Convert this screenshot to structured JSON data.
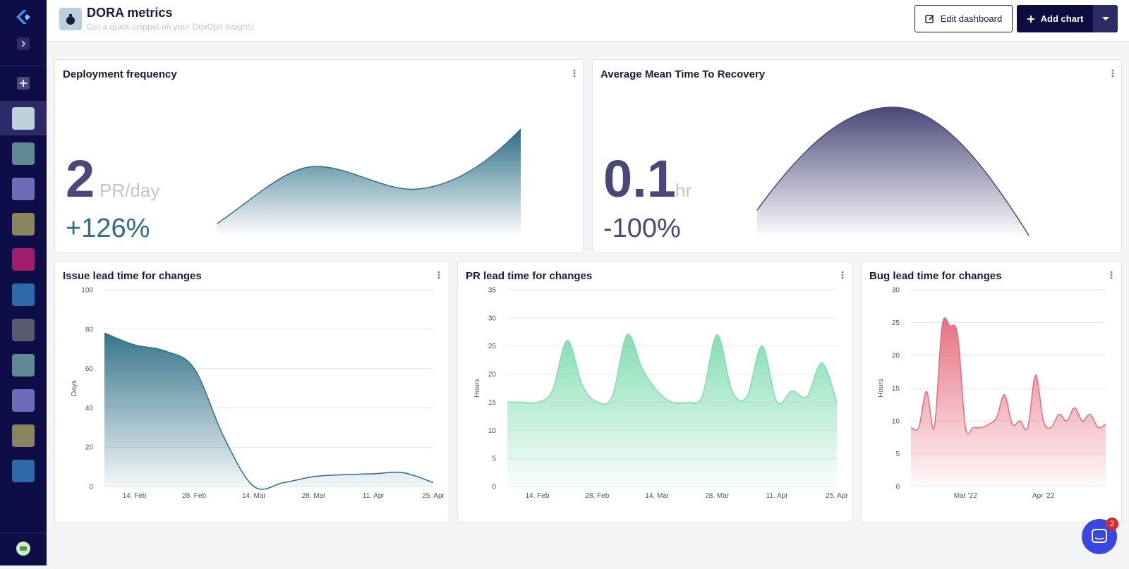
{
  "header": {
    "title": "DORA metrics",
    "subtitle": "Get a quick snippet on your DevOps insights",
    "edit_button": "Edit dashboard",
    "add_button": "Add chart"
  },
  "stat_cards": [
    {
      "title": "Deployment frequency",
      "value": 2,
      "unit": "PR/day",
      "change": "+126%"
    },
    {
      "title": "Average Mean Time To Recovery",
      "value": 0.1,
      "unit": "hr",
      "change": "-100%"
    }
  ],
  "chart_data": [
    {
      "type": "area",
      "title": "Issue lead time for changes",
      "y_label": "Days",
      "color": "#2c6e85",
      "categories": [
        null,
        "14. Feb",
        null,
        "28. Feb",
        null,
        "14. Mar",
        null,
        "28. Mar",
        null,
        "11. Apr",
        null,
        "25. Apr"
      ],
      "values": [
        78,
        72,
        69,
        60,
        25,
        0,
        2,
        5,
        6,
        6.5,
        7,
        2
      ],
      "ylim": [
        0,
        100
      ],
      "yticks": [
        0,
        20,
        40,
        60,
        80,
        100
      ],
      "grid": true
    },
    {
      "type": "area",
      "title": "PR lead time for changes",
      "y_label": "Hours",
      "color": "#7fdcb0",
      "categories": [
        null,
        null,
        "14. Feb",
        null,
        null,
        null,
        "28. Feb",
        null,
        null,
        null,
        "14. Mar",
        null,
        null,
        null,
        "28. Mar",
        null,
        null,
        null,
        "11. Apr",
        null,
        null,
        null,
        "25. Apr"
      ],
      "values": [
        15,
        15,
        15,
        17,
        26,
        18,
        15,
        16,
        27,
        21,
        17,
        15,
        15,
        16,
        27,
        17,
        16,
        25,
        15,
        17,
        16,
        22,
        15
      ],
      "ylim": [
        0,
        35
      ],
      "yticks": [
        0,
        5,
        10,
        15,
        20,
        25,
        30,
        35
      ],
      "grid": true
    },
    {
      "type": "area",
      "title": "Bug lead time for changes",
      "y_label": "Hours",
      "color": "#e46a7a",
      "categories": [
        null,
        null,
        null,
        null,
        null,
        null,
        null,
        "Mar '22",
        null,
        null,
        null,
        null,
        null,
        null,
        null,
        null,
        null,
        "Apr '22",
        null,
        null,
        null,
        null,
        null,
        null,
        null,
        null
      ],
      "values": [
        9,
        9,
        14.5,
        9,
        24.5,
        24.5,
        23,
        9,
        9,
        9,
        9.5,
        10.5,
        14,
        9.5,
        10,
        9,
        17,
        10,
        9,
        11,
        10,
        12,
        10,
        11,
        9,
        9.5
      ],
      "ylim": [
        0,
        30
      ],
      "yticks": [
        0,
        5,
        10,
        15,
        20,
        25,
        30
      ],
      "grid": true
    }
  ],
  "chat_badge": 2
}
